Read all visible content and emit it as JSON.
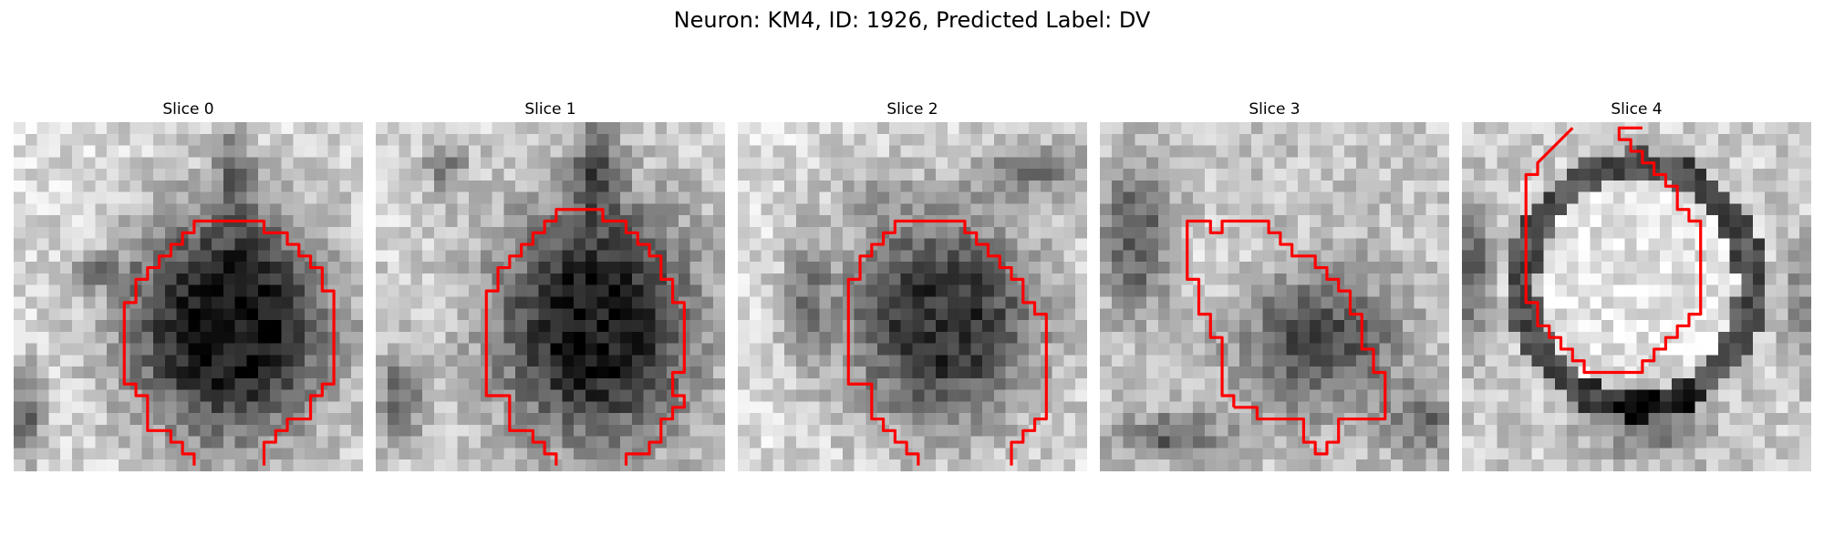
{
  "figure": {
    "title": "Neuron: KM4, ID: 1926, Predicted Label: DV",
    "panels": [
      {
        "title": "Slice 0"
      },
      {
        "title": "Slice 1"
      },
      {
        "title": "Slice 2"
      },
      {
        "title": "Slice 3"
      },
      {
        "title": "Slice 4"
      }
    ],
    "image_style": {
      "colormap": "grayscale",
      "grid_size": 30,
      "outline_color": "#ff0000"
    }
  }
}
